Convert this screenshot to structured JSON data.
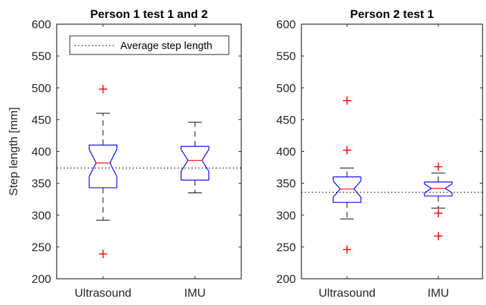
{
  "chart_data": [
    {
      "type": "box",
      "title": "Person 1 test 1 and 2",
      "xlabel": "",
      "ylabel": "Step length [mm]",
      "ylim": [
        200,
        600
      ],
      "yticks": [
        200,
        250,
        300,
        350,
        400,
        450,
        500,
        550,
        600
      ],
      "categories": [
        "Ultrasound",
        "IMU"
      ],
      "notched": true,
      "legend": {
        "entries": [
          "Average step length"
        ],
        "position": "top"
      },
      "average_line": 374,
      "boxes": [
        {
          "label": "Ultrasound",
          "whisker_low": 292,
          "q1": 343,
          "median": 382,
          "q3": 410,
          "whisker_high": 460,
          "outliers": [
            498,
            239
          ]
        },
        {
          "label": "IMU",
          "whisker_low": 335,
          "q1": 355,
          "median": 386,
          "q3": 408,
          "whisker_high": 446,
          "outliers": []
        }
      ]
    },
    {
      "type": "box",
      "title": "Person 2 test 1",
      "xlabel": "",
      "ylabel": "",
      "ylim": [
        200,
        600
      ],
      "yticks": [
        200,
        250,
        300,
        350,
        400,
        450,
        500,
        550,
        600
      ],
      "categories": [
        "Ultrasound",
        "IMU"
      ],
      "notched": true,
      "average_line": 336,
      "boxes": [
        {
          "label": "Ultrasound",
          "whisker_low": 294,
          "q1": 320,
          "median": 341,
          "q3": 360,
          "whisker_high": 374,
          "outliers": [
            480,
            402,
            246
          ]
        },
        {
          "label": "IMU",
          "whisker_low": 311,
          "q1": 330,
          "median": 342,
          "q3": 352,
          "whisker_high": 366,
          "outliers": [
            376,
            303,
            267
          ]
        }
      ]
    }
  ],
  "colors": {
    "box": "#0000ff",
    "median": "#ff0000",
    "outlier": "#ff0000",
    "whisker": "#000000",
    "axis": "#262626"
  },
  "labels": {
    "left_title": "Person 1 test 1 and 2",
    "right_title": "Person 2 test 1",
    "ylabel": "Step length [mm]",
    "legend": "Average step length",
    "cat1": "Ultrasound",
    "cat2": "IMU"
  }
}
